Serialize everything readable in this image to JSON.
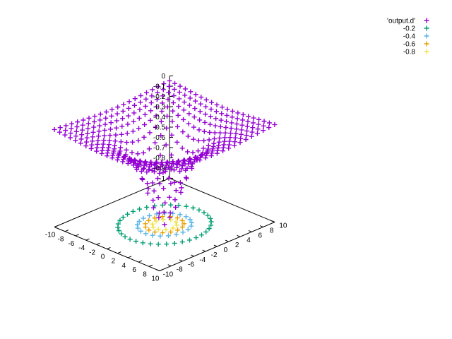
{
  "chart_data": {
    "type": "scatter",
    "title": "",
    "xlabel": "",
    "ylabel": "",
    "zlabel": "",
    "xlim": [
      -10,
      10
    ],
    "ylim": [
      -10,
      10
    ],
    "zlim": [
      -1,
      0
    ],
    "x_ticks": [
      "-10",
      "-8",
      "-6",
      "-4",
      "-2",
      "0",
      "2",
      "4",
      "6",
      "8",
      "10"
    ],
    "y_ticks": [
      "-10",
      "-8",
      "-6",
      "-4",
      "-2",
      "0",
      "2",
      "4",
      "6",
      "8",
      "10"
    ],
    "z_ticks": [
      "0",
      "-0.1",
      "-0.2",
      "-0.3",
      "-0.4",
      "-0.5",
      "-0.6",
      "-0.7",
      "-0.8",
      "-0.9",
      "-1"
    ],
    "legend_position": "top-right",
    "surface": {
      "name": "'output.d'",
      "color": "#9400d3",
      "marker": "plus",
      "grid_range": [
        -10,
        10
      ],
      "grid_step": 1,
      "function": "z = -1 / (1 + 0.1*(x^2 + y^2))"
    },
    "contours": [
      {
        "name": "-0.2",
        "level": -0.2,
        "radius": 6,
        "color": "#009e73"
      },
      {
        "name": "-0.4",
        "level": -0.4,
        "radius": 3.5,
        "color": "#56b4e9"
      },
      {
        "name": "-0.6",
        "level": -0.6,
        "radius": 2.5,
        "color": "#e69f00"
      },
      {
        "name": "-0.8",
        "level": -0.8,
        "radius": 1.6,
        "color": "#f0e442"
      }
    ]
  }
}
